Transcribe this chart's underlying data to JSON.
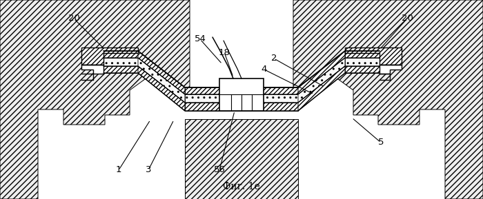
{
  "figsize": [
    7.0,
    2.89
  ],
  "dpi": 100,
  "bg": "#ffffff",
  "lc": "#000000",
  "title": "Фиг. 1е"
}
